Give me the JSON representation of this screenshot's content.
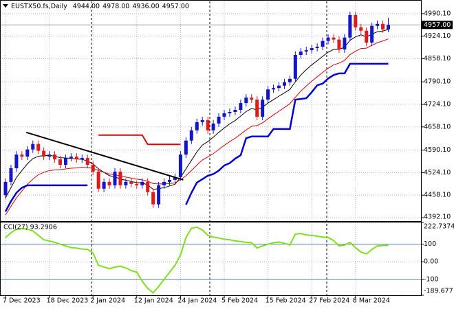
{
  "chart_data": [
    {
      "type": "candlestick",
      "title": "EUSTX50.fs,Daily",
      "ohlc_labels": [
        "4944.00",
        "4978.00",
        "4936.00",
        "4957.00"
      ],
      "categories": [
        "7 Dec 2023",
        null,
        null,
        null,
        null,
        null,
        null,
        null,
        "18 Dec 2023",
        null,
        null,
        null,
        null,
        null,
        null,
        null,
        "2 Jan 2024",
        null,
        null,
        null,
        null,
        null,
        null,
        null,
        "12 Jan 2024",
        null,
        null,
        null,
        null,
        null,
        null,
        null,
        "24 Jan 2024",
        null,
        null,
        null,
        null,
        null,
        null,
        null,
        "5 Feb 2024",
        null,
        null,
        null,
        null,
        null,
        null,
        null,
        "15 Feb 2024",
        null,
        null,
        null,
        null,
        null,
        null,
        null,
        "27 Feb 2024",
        null,
        null,
        null,
        null,
        null,
        null,
        null,
        "8 Mar 2024",
        null,
        null,
        null,
        null,
        null,
        null
      ],
      "open": [
        4458,
        4497,
        4537,
        4577,
        4571,
        4592,
        4608,
        4588,
        4571,
        4577,
        4563,
        4547,
        4567,
        4571,
        4563,
        4567,
        4547,
        4527,
        4477,
        4497,
        4487,
        4527,
        4487,
        4497,
        4491,
        4487,
        4497,
        4467,
        4431,
        4487,
        4497,
        4503,
        4511,
        4577,
        4618,
        4648,
        4672,
        4678,
        4648,
        4668,
        4688,
        4698,
        4702,
        4708,
        4728,
        4744,
        4738,
        4688,
        4738,
        4768,
        4772,
        4779,
        4789,
        4799,
        4869,
        4879,
        4883,
        4889,
        4893,
        4910,
        4920,
        4914,
        4885,
        4920,
        4986,
        4950,
        4940,
        4905,
        4954,
        4960,
        4944
      ],
      "high": [
        4507,
        4547,
        4587,
        4587,
        4602,
        4618,
        4618,
        4598,
        4587,
        4587,
        4573,
        4577,
        4581,
        4581,
        4577,
        4577,
        4557,
        4537,
        4507,
        4507,
        4537,
        4537,
        4507,
        4507,
        4501,
        4507,
        4507,
        4477,
        4497,
        4507,
        4513,
        4521,
        4587,
        4628,
        4658,
        4682,
        4688,
        4688,
        4678,
        4698,
        4708,
        4712,
        4718,
        4738,
        4754,
        4754,
        4748,
        4748,
        4778,
        4782,
        4789,
        4799,
        4809,
        4879,
        4889,
        4893,
        4899,
        4903,
        4920,
        4930,
        4930,
        4924,
        4930,
        4996,
        4996,
        4960,
        4950,
        4964,
        4970,
        4970,
        4978
      ],
      "low": [
        4448,
        4487,
        4527,
        4561,
        4561,
        4582,
        4578,
        4561,
        4561,
        4553,
        4537,
        4537,
        4557,
        4553,
        4553,
        4537,
        4517,
        4467,
        4467,
        4477,
        4477,
        4477,
        4477,
        4481,
        4477,
        4477,
        4457,
        4421,
        4421,
        4477,
        4487,
        4493,
        4501,
        4567,
        4608,
        4638,
        4662,
        4638,
        4638,
        4658,
        4678,
        4688,
        4692,
        4698,
        4718,
        4728,
        4678,
        4678,
        4728,
        4758,
        4762,
        4769,
        4779,
        4789,
        4859,
        4869,
        4873,
        4879,
        4883,
        4900,
        4904,
        4875,
        4875,
        4910,
        4940,
        4930,
        4895,
        4895,
        4944,
        4934,
        4936
      ],
      "close": [
        4497,
        4537,
        4577,
        4571,
        4592,
        4608,
        4588,
        4571,
        4577,
        4563,
        4547,
        4567,
        4571,
        4563,
        4567,
        4547,
        4527,
        4477,
        4497,
        4487,
        4527,
        4487,
        4497,
        4491,
        4487,
        4497,
        4467,
        4431,
        4487,
        4497,
        4503,
        4511,
        4577,
        4618,
        4648,
        4672,
        4678,
        4648,
        4668,
        4688,
        4698,
        4702,
        4708,
        4728,
        4744,
        4738,
        4688,
        4738,
        4768,
        4772,
        4779,
        4789,
        4799,
        4869,
        4879,
        4883,
        4889,
        4893,
        4910,
        4920,
        4914,
        4885,
        4920,
        4986,
        4950,
        4940,
        4905,
        4954,
        4960,
        4944,
        4957
      ],
      "up_color": "#1414c8",
      "down_color": "#e01a1a",
      "lines": [
        {
          "color": "#000000",
          "width": 1,
          "values": [
            4450,
            4480,
            4510,
            4530,
            4550,
            4565,
            4572,
            4574,
            4575,
            4572,
            4568,
            4567,
            4566,
            4564,
            4563,
            4558,
            4550,
            4535,
            4525,
            4515,
            4512,
            4505,
            4502,
            4498,
            4495,
            4494,
            4488,
            4475,
            4477,
            4480,
            4485,
            4490,
            4510,
            4535,
            4560,
            4585,
            4605,
            4615,
            4628,
            4642,
            4655,
            4667,
            4677,
            4690,
            4703,
            4712,
            4708,
            4716,
            4728,
            4738,
            4748,
            4758,
            4768,
            4790,
            4810,
            4826,
            4840,
            4852,
            4865,
            4877,
            4885,
            4885,
            4892,
            4912,
            4922,
            4928,
            4922,
            4930,
            4937,
            4939,
            4944
          ]
        },
        {
          "color": "#e00000",
          "width": 1,
          "values": [
            4400,
            4425,
            4450,
            4470,
            4490,
            4505,
            4518,
            4525,
            4530,
            4532,
            4533,
            4535,
            4537,
            4538,
            4540,
            4539,
            4537,
            4530,
            4525,
            4520,
            4518,
            4514,
            4511,
            4508,
            4505,
            4503,
            4499,
            4492,
            4491,
            4491,
            4492,
            4494,
            4503,
            4515,
            4530,
            4546,
            4561,
            4570,
            4580,
            4592,
            4604,
            4615,
            4625,
            4637,
            4649,
            4660,
            4662,
            4670,
            4682,
            4693,
            4704,
            4715,
            4726,
            4745,
            4763,
            4778,
            4792,
            4805,
            4818,
            4830,
            4840,
            4845,
            4853,
            4870,
            4880,
            4888,
            4889,
            4897,
            4905,
            4910,
            4916
          ]
        },
        {
          "color": "#0000d0",
          "width": 2.5,
          "values": [
            4410,
            4440,
            4465,
            4480,
            4487,
            4487,
            4487,
            4487,
            4487,
            4487,
            4487,
            4487,
            4487,
            4487,
            4487,
            4487,
            null,
            null,
            null,
            null,
            null,
            null,
            null,
            null,
            null,
            null,
            null,
            null,
            null,
            null,
            null,
            null,
            null,
            4430,
            4465,
            4495,
            4505,
            4515,
            4520,
            4530,
            4545,
            4552,
            4565,
            4575,
            4625,
            4630,
            4630,
            4630,
            4630,
            4652,
            4652,
            4652,
            4652,
            4738,
            4740,
            4742,
            4760,
            4780,
            4785,
            4800,
            4810,
            4815,
            4815,
            4843,
            4843,
            4843,
            4843,
            4843,
            4843,
            4843,
            4843
          ]
        },
        {
          "color": "#e00000",
          "width": 2,
          "values": [
            null,
            null,
            null,
            null,
            null,
            null,
            null,
            null,
            null,
            null,
            null,
            null,
            null,
            null,
            null,
            null,
            null,
            4634,
            4634,
            4634,
            4634,
            4634,
            4634,
            4634,
            4634,
            4634,
            4607,
            4607,
            4607,
            4607,
            4607,
            4607,
            4607,
            null,
            null,
            null,
            null,
            null,
            null,
            null,
            null,
            null,
            null,
            null,
            null,
            null,
            null,
            null,
            null,
            null,
            null,
            null,
            null,
            null,
            null,
            null,
            null,
            null,
            null,
            null,
            null,
            null,
            null,
            null,
            null,
            null,
            null,
            null,
            null,
            null,
            null
          ]
        }
      ],
      "trendline": {
        "x": [
          3.8,
          32.5
        ],
        "values": [
          4642,
          4503
        ],
        "color": "#000000"
      },
      "last_price": {
        "value": 4957,
        "label": "4957.00"
      },
      "ylim": [
        4382,
        5026
      ],
      "yticks": [
        {
          "value": 4990.1,
          "label": "4990.10"
        },
        {
          "value": 4924.1,
          "label": "4924.10"
        },
        {
          "value": 4858.1,
          "label": "4858.10"
        },
        {
          "value": 4790.1,
          "label": "4790.10"
        },
        {
          "value": 4724.1,
          "label": "4724.10"
        },
        {
          "value": 4658.1,
          "label": "4658.10"
        },
        {
          "value": 4590.1,
          "label": "4590.10"
        },
        {
          "value": 4524.1,
          "label": "4524.10"
        },
        {
          "value": 4458.1,
          "label": "4458.10"
        },
        {
          "value": 4392.1,
          "label": "4392.10"
        }
      ],
      "grid": true
    },
    {
      "type": "line",
      "title": "CCI(27) 93.2906",
      "color": "#7ee01a",
      "values": [
        137,
        165,
        184,
        188,
        185,
        175,
        150,
        125,
        118,
        110,
        100,
        90,
        80,
        78,
        72,
        70,
        50,
        -20,
        -30,
        -39,
        -30,
        -25,
        -35,
        -50,
        -59,
        -110,
        -150,
        -176,
        -140,
        -100,
        -60,
        -20,
        39,
        137,
        190,
        196,
        180,
        150,
        140,
        135,
        128,
        125,
        118,
        115,
        110,
        108,
        78,
        90,
        100,
        108,
        112,
        105,
        95,
        157,
        160,
        152,
        150,
        145,
        140,
        138,
        120,
        90,
        95,
        110,
        80,
        55,
        45,
        70,
        90,
        92,
        93.2906
      ],
      "ylim": [
        -189.6771,
        222.7374
      ],
      "yticks": [
        {
          "value": 222.7374,
          "label": "222.7374"
        },
        100,
        {
          "value": 0,
          "label": "0.00"
        },
        -100,
        {
          "value": -189.6771,
          "label": "-189.6771"
        }
      ],
      "level_lines": [
        100,
        -100
      ],
      "level_color": "#5a7fa6",
      "grid": true
    }
  ]
}
